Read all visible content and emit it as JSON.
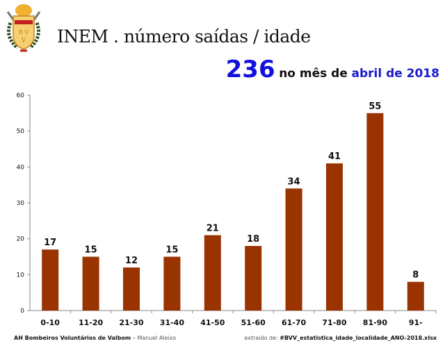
{
  "header": {
    "title": "INEM . número saídas / idade",
    "total": "236",
    "mid_text": "no mês de",
    "period": "abril de 2018",
    "logo_text": "B.V.V"
  },
  "footer": {
    "org": "AH Bombeiros Voluntários de Valbom",
    "sep": " – ",
    "author": "Manuel Aleixo",
    "source_label": "extraido de: ",
    "source_file": "#BVV_estatistica_idade_localidade_ANO-2018.xlsx"
  },
  "colors": {
    "bar": "#993300",
    "total": "#1010e0"
  },
  "chart_data": {
    "type": "bar",
    "categories": [
      "0-10",
      "11-20",
      "21-30",
      "31-40",
      "41-50",
      "51-60",
      "61-70",
      "71-80",
      "81-90",
      "91-"
    ],
    "values": [
      17,
      15,
      12,
      15,
      21,
      18,
      34,
      41,
      55,
      8
    ],
    "ylim": [
      0,
      60
    ],
    "yticks": [
      0,
      10,
      20,
      30,
      40,
      50,
      60
    ],
    "title": "",
    "xlabel": "",
    "ylabel": "",
    "grid": false,
    "data_labels": true
  }
}
